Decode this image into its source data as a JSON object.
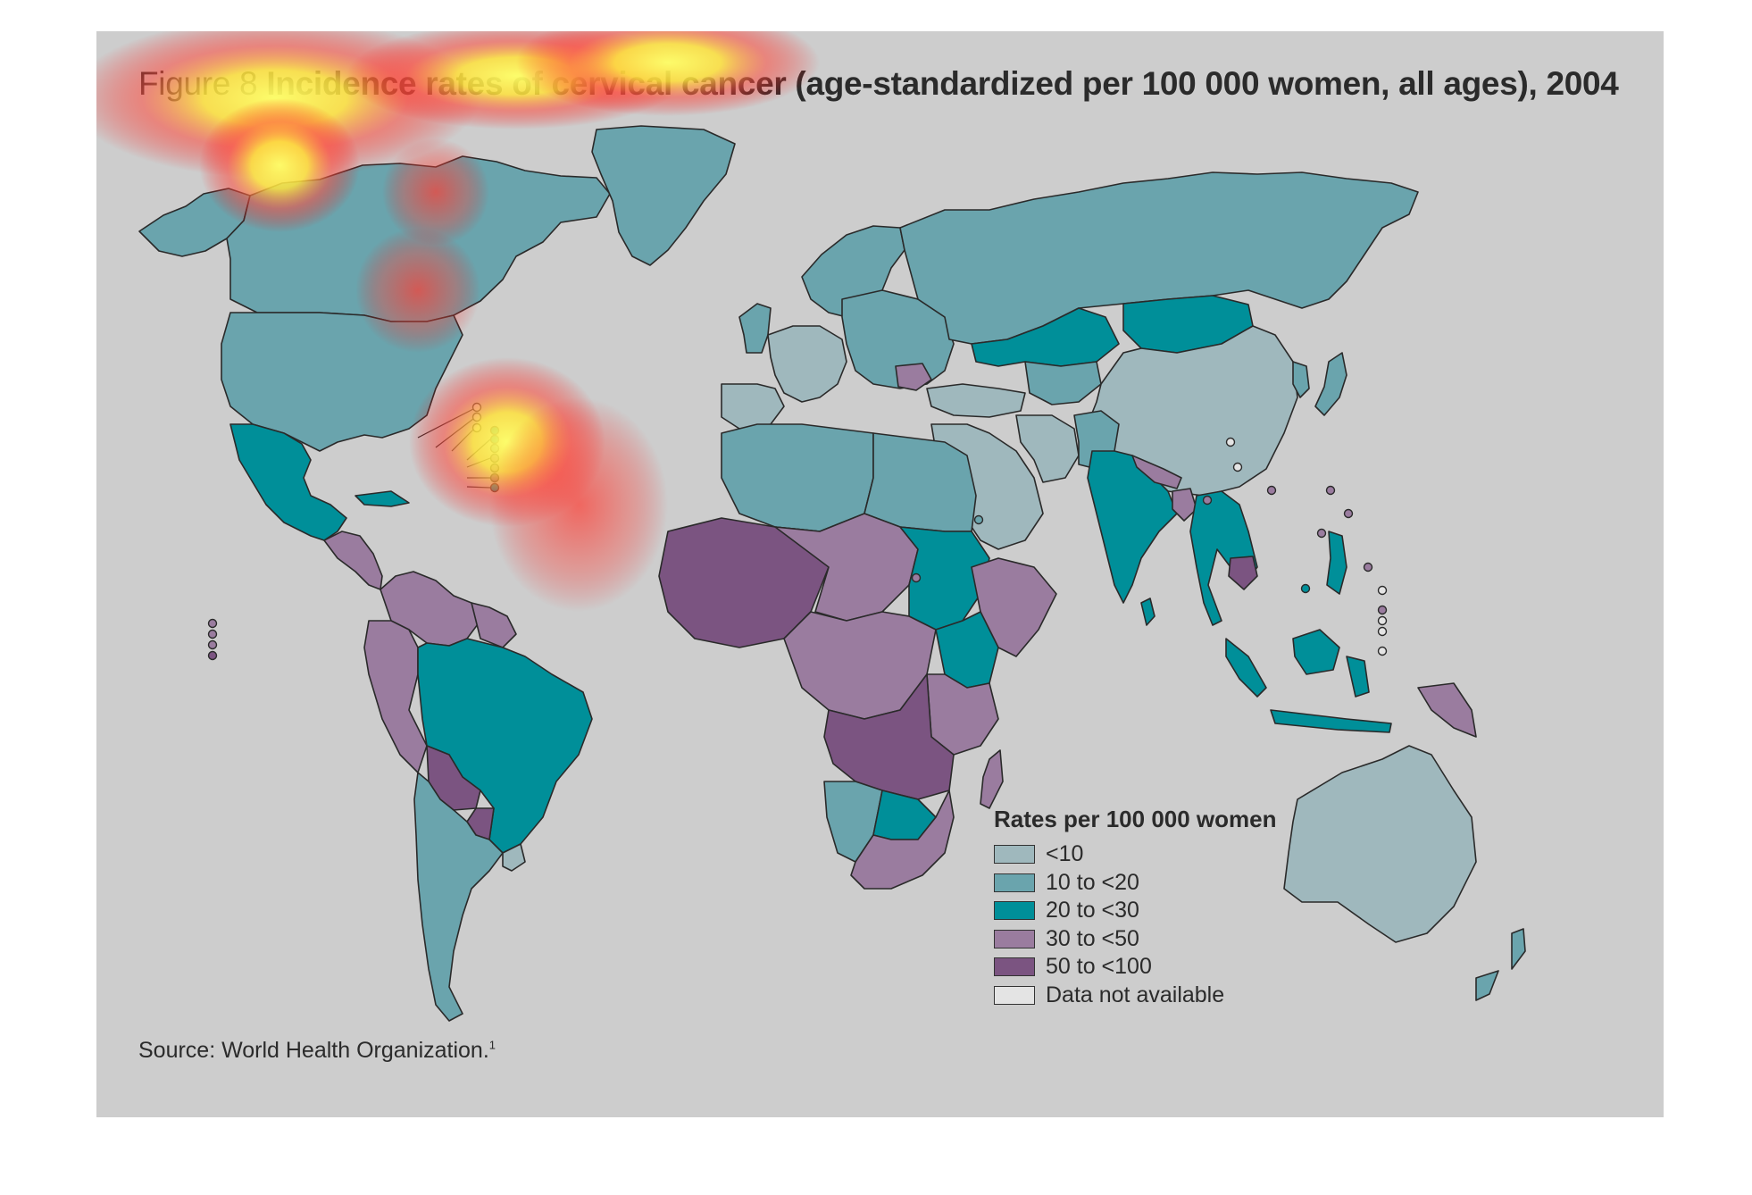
{
  "figure": {
    "title_prefix": "Figure 8",
    "title_main": "Incidence rates of cervical cancer (age-standardized per 100 000 women, all ages), 2004",
    "source": "Source: World Health Organization.",
    "source_note": "1"
  },
  "legend": {
    "title": "Rates per 100 000 women",
    "items": [
      {
        "label": "<10",
        "color": "#9fb8bd"
      },
      {
        "label": "10 to <20",
        "color": "#6aa4ad"
      },
      {
        "label": "20 to <30",
        "color": "#008f99"
      },
      {
        "label": "30 to <50",
        "color": "#9a7c9f"
      },
      {
        "label": "50 to <100",
        "color": "#7b5481"
      },
      {
        "label": "Data not available",
        "color": "#e4e4e4"
      }
    ]
  },
  "map": {
    "background": "#cdcdcd",
    "regions": [
      {
        "name": "canada",
        "class": 1
      },
      {
        "name": "alaska",
        "class": 1
      },
      {
        "name": "greenland",
        "class": 1
      },
      {
        "name": "usa",
        "class": 1
      },
      {
        "name": "mexico",
        "class": 2
      },
      {
        "name": "central-america",
        "class": 3
      },
      {
        "name": "caribbean",
        "class": 2
      },
      {
        "name": "colombia-venezuela",
        "class": 3
      },
      {
        "name": "guianas",
        "class": 3
      },
      {
        "name": "brazil",
        "class": 2
      },
      {
        "name": "peru-ecuador",
        "class": 3
      },
      {
        "name": "bolivia",
        "class": 4
      },
      {
        "name": "paraguay",
        "class": 4
      },
      {
        "name": "chile-argentina",
        "class": 1
      },
      {
        "name": "uruguay",
        "class": 0
      },
      {
        "name": "europe-west",
        "class": 0
      },
      {
        "name": "iberia",
        "class": 0
      },
      {
        "name": "scandinavia",
        "class": 1
      },
      {
        "name": "uk-ireland",
        "class": 1
      },
      {
        "name": "europe-east",
        "class": 1
      },
      {
        "name": "romania",
        "class": 3
      },
      {
        "name": "russia",
        "class": 1
      },
      {
        "name": "kazakhstan",
        "class": 2
      },
      {
        "name": "mongolia",
        "class": 2
      },
      {
        "name": "central-asia",
        "class": 1
      },
      {
        "name": "china",
        "class": 0
      },
      {
        "name": "korea",
        "class": 1
      },
      {
        "name": "japan",
        "class": 1
      },
      {
        "name": "middle-east",
        "class": 0
      },
      {
        "name": "turkey-caucasus",
        "class": 0
      },
      {
        "name": "iran",
        "class": 0
      },
      {
        "name": "afghanistan-pakistan",
        "class": 1
      },
      {
        "name": "india",
        "class": 2
      },
      {
        "name": "nepal",
        "class": 3
      },
      {
        "name": "bangladesh",
        "class": 3
      },
      {
        "name": "sri-lanka",
        "class": 2
      },
      {
        "name": "southeast-asia",
        "class": 2
      },
      {
        "name": "cambodia",
        "class": 4
      },
      {
        "name": "indonesia",
        "class": 2
      },
      {
        "name": "borneo",
        "class": 2
      },
      {
        "name": "philippines",
        "class": 2
      },
      {
        "name": "papua-new-guinea",
        "class": 3
      },
      {
        "name": "australia",
        "class": 0
      },
      {
        "name": "new-zealand",
        "class": 1
      },
      {
        "name": "north-africa-west",
        "class": 1
      },
      {
        "name": "libya-egypt",
        "class": 1
      },
      {
        "name": "west-africa",
        "class": 4
      },
      {
        "name": "sahel",
        "class": 3
      },
      {
        "name": "sudan",
        "class": 2
      },
      {
        "name": "horn-of-africa",
        "class": 3
      },
      {
        "name": "central-africa",
        "class": 3
      },
      {
        "name": "east-africa",
        "class": 3
      },
      {
        "name": "kenya",
        "class": 2
      },
      {
        "name": "southern-central-africa",
        "class": 4
      },
      {
        "name": "namibia",
        "class": 1
      },
      {
        "name": "zimbabwe",
        "class": 2
      },
      {
        "name": "south-africa",
        "class": 3
      },
      {
        "name": "madagascar",
        "class": 3
      }
    ]
  }
}
